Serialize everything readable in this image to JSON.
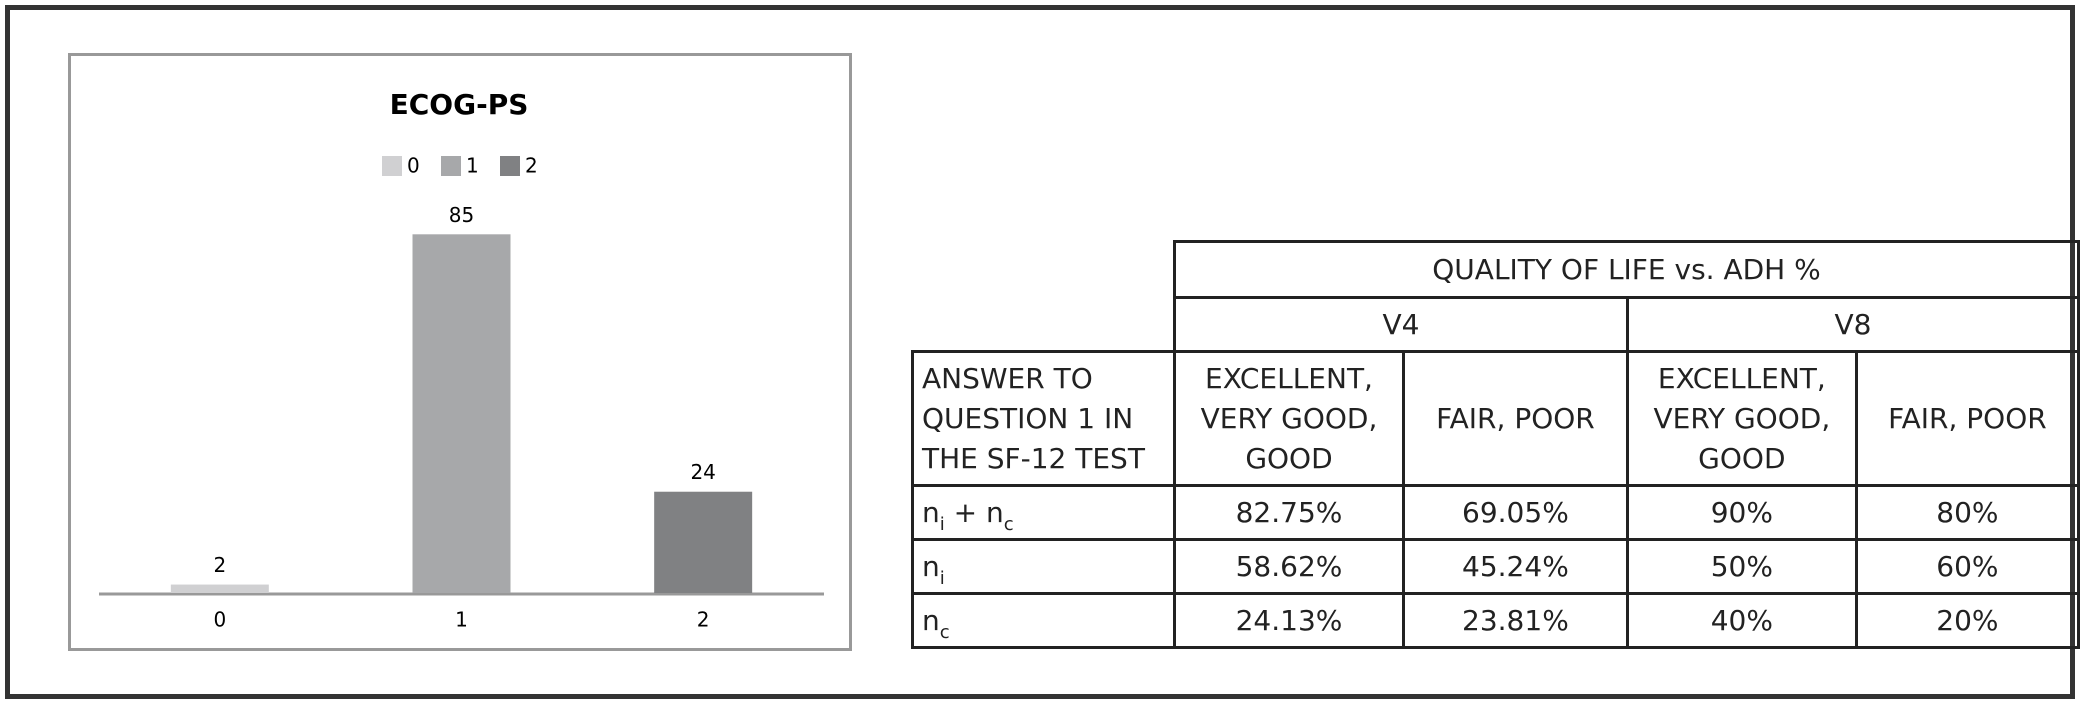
{
  "chart_data": {
    "type": "bar",
    "title": "ECOG-PS",
    "categories": [
      "0",
      "1",
      "2"
    ],
    "values": [
      2,
      85,
      24
    ],
    "colors": [
      "#d0d0d2",
      "#a7a8aa",
      "#808183"
    ],
    "legend": [
      "0",
      "1",
      "2"
    ],
    "ylim": [
      0,
      100
    ]
  },
  "table": {
    "header": "QUALITY OF LIFE vs. ADH %",
    "groups": [
      "V4",
      "V8"
    ],
    "columns": [
      "ANSWER TO QUESTION 1 IN THE SF-12 TEST",
      "EXCELLENT, VERY GOOD, GOOD",
      "FAIR, POOR",
      "EXCELLENT, VERY GOOD, GOOD",
      "FAIR, POOR"
    ],
    "rows": [
      {
        "label": [
          {
            "text": "n",
            "sub": "i"
          },
          {
            "text": " + n",
            "sub": "c"
          }
        ],
        "values": [
          "82.75%",
          "69.05%",
          "90%",
          "80%"
        ]
      },
      {
        "label": [
          {
            "text": "n",
            "sub": "i"
          }
        ],
        "values": [
          "58.62%",
          "45.24%",
          "50%",
          "60%"
        ]
      },
      {
        "label": [
          {
            "text": "n",
            "sub": "c"
          }
        ],
        "values": [
          "24.13%",
          "23.81%",
          "40%",
          "20%"
        ]
      }
    ]
  }
}
